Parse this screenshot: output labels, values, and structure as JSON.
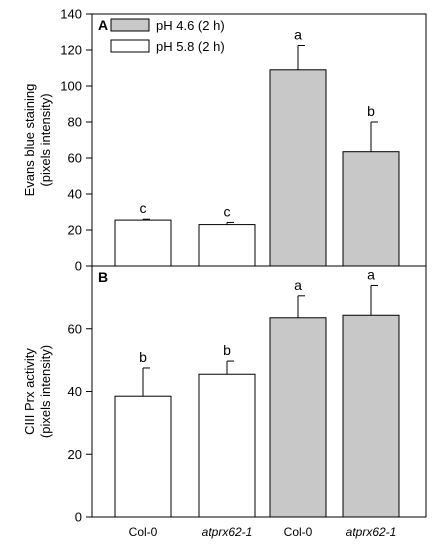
{
  "legend": [
    {
      "label": "pH 4.6 (2 h)",
      "color": "#c8c8c8"
    },
    {
      "label": "pH 5.8 (2 h)",
      "color": "#ffffff"
    }
  ],
  "chart_data": [
    {
      "type": "bar",
      "panel": "A",
      "ylabel_line1": "Evans blue staining",
      "ylabel_line2": "(pixels intensity)",
      "ylim": [
        0,
        140
      ],
      "yticks": [
        0,
        20,
        40,
        60,
        80,
        100,
        120,
        140
      ],
      "categories": [
        "Col-0",
        "atprx62-1",
        "Col-0",
        "atprx62-1"
      ],
      "series": [
        {
          "name": "pH 5.8 (2 h)",
          "color": "#ffffff",
          "values": [
            25.5,
            23,
            null,
            null
          ],
          "errors": [
            0.5,
            1.2,
            null,
            null
          ],
          "letters": [
            "c",
            "c",
            null,
            null
          ]
        },
        {
          "name": "pH 4.6 (2 h)",
          "color": "#c8c8c8",
          "values": [
            null,
            null,
            109,
            63.5
          ],
          "errors": [
            null,
            null,
            13.5,
            16.5
          ],
          "letters": [
            null,
            null,
            "a",
            "b"
          ]
        }
      ]
    },
    {
      "type": "bar",
      "panel": "B",
      "ylabel_line1": "CIII Prx activity",
      "ylabel_line2": "(pixels intensity)",
      "ylim": [
        0,
        80
      ],
      "yticks": [
        0,
        20,
        40,
        60
      ],
      "categories": [
        "Col-0",
        "atprx62-1",
        "Col-0",
        "atprx62-1"
      ],
      "series": [
        {
          "name": "pH 5.8 (2 h)",
          "color": "#ffffff",
          "values": [
            38.5,
            45.5,
            null,
            null
          ],
          "errors": [
            9.0,
            4.2,
            null,
            null
          ],
          "letters": [
            "b",
            "b",
            null,
            null
          ]
        },
        {
          "name": "pH 4.6 (2 h)",
          "color": "#c8c8c8",
          "values": [
            null,
            null,
            63.5,
            64.3
          ],
          "errors": [
            null,
            null,
            7.0,
            9.5
          ],
          "letters": [
            null,
            null,
            "a",
            "a"
          ]
        }
      ]
    }
  ],
  "x_labels": [
    {
      "text": "Col-0",
      "italic": false
    },
    {
      "text": "atprx62-1",
      "italic": true
    },
    {
      "text": "Col-0",
      "italic": false
    },
    {
      "text": "atprx62-1",
      "italic": true
    }
  ]
}
